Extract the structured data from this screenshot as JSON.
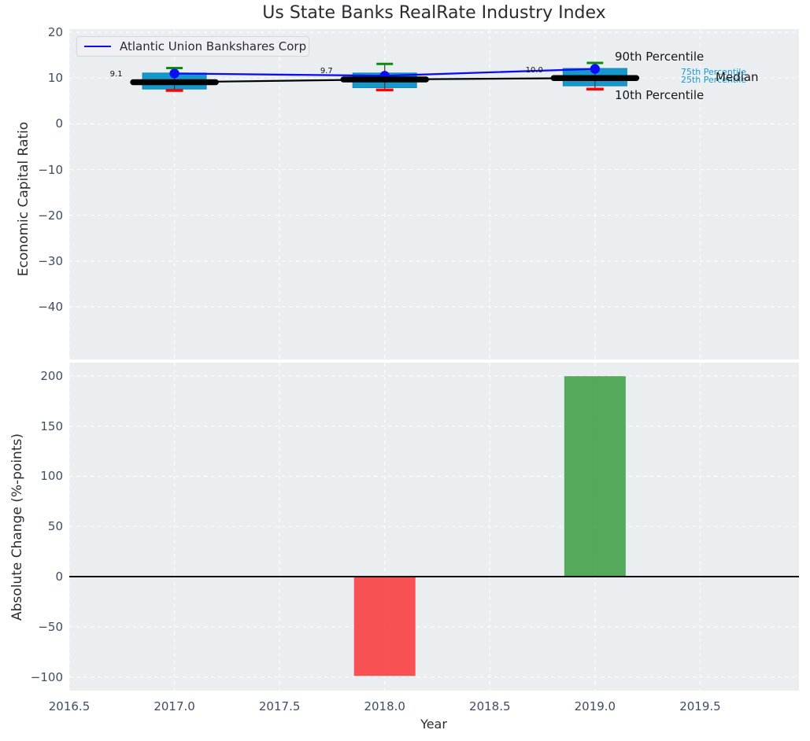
{
  "title": "Us State Banks RealRate Industry Index",
  "legend": {
    "label": "Atlantic Union Bankshares Corp"
  },
  "annotations": {
    "p90": "90th Percentile",
    "p75": "75th Percentile",
    "p25": "25th Percentile",
    "median": "Median",
    "p10": "10th Percentile"
  },
  "colors": {
    "plot_bg": "#eaeef1",
    "grid": "#ffffff",
    "tick_text": "#3f4d63",
    "title_text": "#2b2b33",
    "company_line": "#0d0df5",
    "median_line": "#000000",
    "box_fill": "#1598cb",
    "box_edge": "#1186b5",
    "whisker": "#3a3a3a",
    "cap_high_green": "#0a8c0f",
    "cap_low_red": "#fe0000",
    "bar_negative_red": "#f93b3d",
    "bar_positive_green": "#3fa044",
    "zero_line": "#000000",
    "annotation_cyan": "#1a9bce"
  },
  "chart_data": [
    {
      "type": "line",
      "subtype": "percentile-boxes-with-company-line",
      "ylabel": "Economic Capital Ratio",
      "xlim": [
        2016.5,
        2019.97
      ],
      "ylim": [
        -51.5,
        20.7
      ],
      "yticks": [
        20,
        10,
        0,
        -10,
        -20,
        -30,
        -40
      ],
      "grid": true,
      "legend_position": "upper left",
      "x": [
        2017,
        2018,
        2019
      ],
      "series": [
        {
          "name": "Atlantic Union Bankshares Corp",
          "values": [
            11.0,
            10.5,
            12.0
          ],
          "color": "#0d0df5",
          "style": "line+dots"
        },
        {
          "name": "Median",
          "values": [
            9.1,
            9.7,
            10.0
          ],
          "color": "#000000",
          "style": "thick-bars+line"
        },
        {
          "name": "90th Percentile",
          "values": [
            12.2,
            13.1,
            13.3
          ],
          "color": "#0a8c0f",
          "style": "cap"
        },
        {
          "name": "75th Percentile",
          "values": [
            11.1,
            11.1,
            12.1
          ],
          "color": "#1598cb",
          "style": "box-top"
        },
        {
          "name": "25th Percentile",
          "values": [
            7.6,
            7.9,
            8.3
          ],
          "color": "#1598cb",
          "style": "box-bottom"
        },
        {
          "name": "10th Percentile",
          "values": [
            7.3,
            7.4,
            7.6
          ],
          "color": "#fe0000",
          "style": "cap"
        }
      ],
      "median_labels": [
        "9.1",
        "9.7",
        "10.0"
      ]
    },
    {
      "type": "bar",
      "ylabel": "Absolute Change (%-points)",
      "xlabel": "Year",
      "xlim": [
        2016.5,
        2019.97
      ],
      "ylim": [
        -113.6,
        213.2
      ],
      "yticks": [
        200,
        150,
        100,
        50,
        0,
        -50,
        -100
      ],
      "xticks": [
        2016.5,
        2017,
        2017.5,
        2018,
        2018.5,
        2019,
        2019.5
      ],
      "xtick_labels": [
        "2016.5",
        "2017.0",
        "2017.5",
        "2018.0",
        "2018.5",
        "2019.0",
        "2019.5"
      ],
      "grid": true,
      "zero_line": true,
      "bars": [
        {
          "x": 2018,
          "value": -98.9,
          "color": "#f93b3d"
        },
        {
          "x": 2019,
          "value": 199.7,
          "color": "#3fa044"
        }
      ]
    }
  ]
}
